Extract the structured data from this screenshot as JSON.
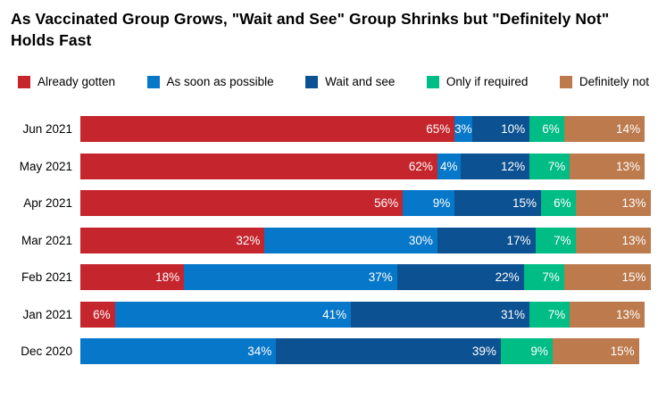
{
  "title": "As Vaccinated Group Grows, \"Wait and See\" Group Shrinks but \"Definitely Not\" Holds Fast",
  "chart_data": {
    "type": "bar",
    "stacked": true,
    "orientation": "horizontal",
    "title": "As Vaccinated Group Grows, \"Wait and See\" Group Shrinks but \"Definitely Not\" Holds Fast",
    "categories": [
      "Jun 2021",
      "May 2021",
      "Apr 2021",
      "Mar 2021",
      "Feb 2021",
      "Jan 2021",
      "Dec 2020"
    ],
    "series": [
      {
        "name": "Already gotten",
        "color": "#c5262d",
        "values": [
          65,
          62,
          56,
          32,
          18,
          6,
          0
        ]
      },
      {
        "name": "As soon as possible",
        "color": "#0778c9",
        "values": [
          3,
          4,
          9,
          30,
          37,
          41,
          34
        ]
      },
      {
        "name": "Wait and see",
        "color": "#0c5191",
        "values": [
          10,
          12,
          15,
          17,
          22,
          31,
          39
        ]
      },
      {
        "name": "Only if required",
        "color": "#00bc85",
        "values": [
          6,
          7,
          6,
          7,
          7,
          7,
          9
        ]
      },
      {
        "name": "Definitely not",
        "color": "#bc7a4d",
        "values": [
          14,
          13,
          13,
          13,
          15,
          13,
          15
        ]
      }
    ],
    "value_suffix": "%",
    "value_label_color": "#ffffff",
    "xlim": [
      0,
      100
    ],
    "xlabel": "",
    "ylabel": "",
    "grid": false,
    "legend_position": "top"
  }
}
